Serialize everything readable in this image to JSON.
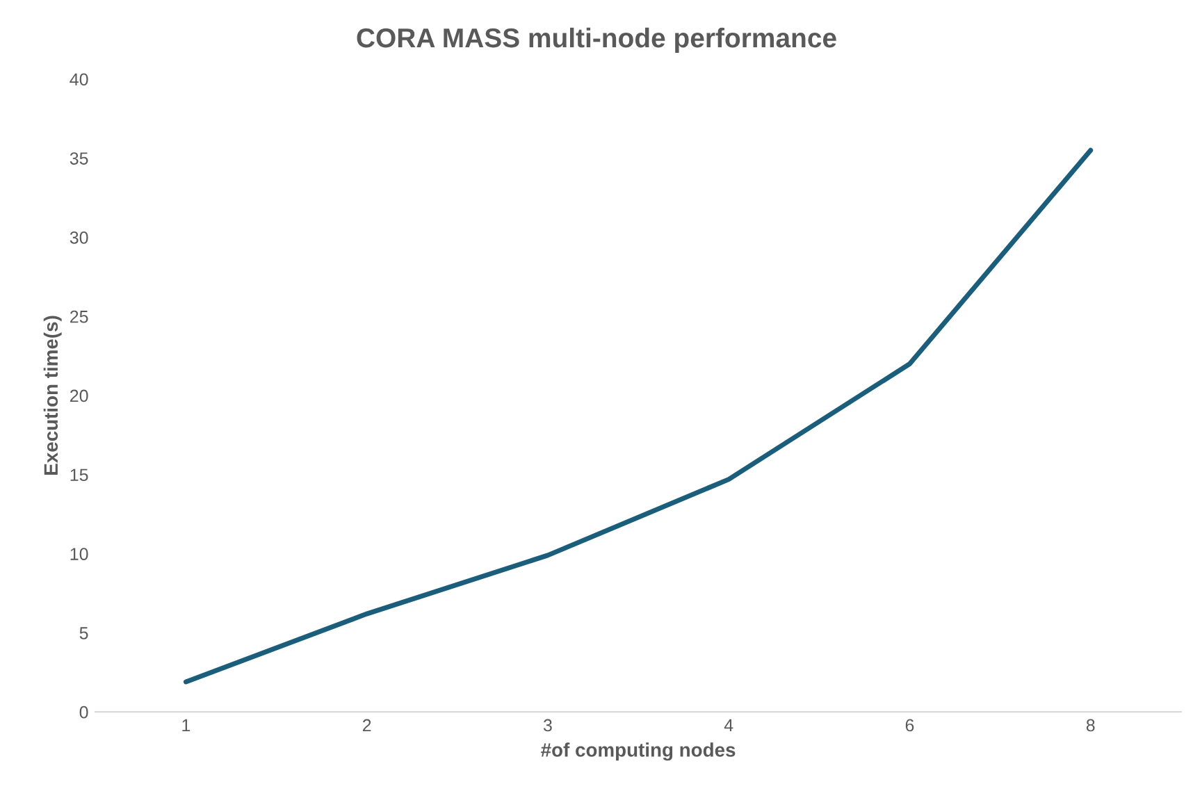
{
  "chart_data": {
    "type": "line",
    "title": "CORA MASS multi-node performance",
    "xlabel": "#of computing nodes",
    "ylabel": "Execution time(s)",
    "categories": [
      "1",
      "2",
      "3",
      "4",
      "6",
      "8"
    ],
    "series": [
      {
        "color": "#1b5e7b",
        "values": [
          1.9,
          6.2,
          9.9,
          14.7,
          22.0,
          35.5
        ]
      }
    ],
    "ylim": [
      0,
      40
    ],
    "yticks": [
      0,
      5,
      10,
      15,
      20,
      25,
      30,
      35,
      40
    ],
    "grid": false,
    "marker": "none",
    "line_style": "solid"
  }
}
